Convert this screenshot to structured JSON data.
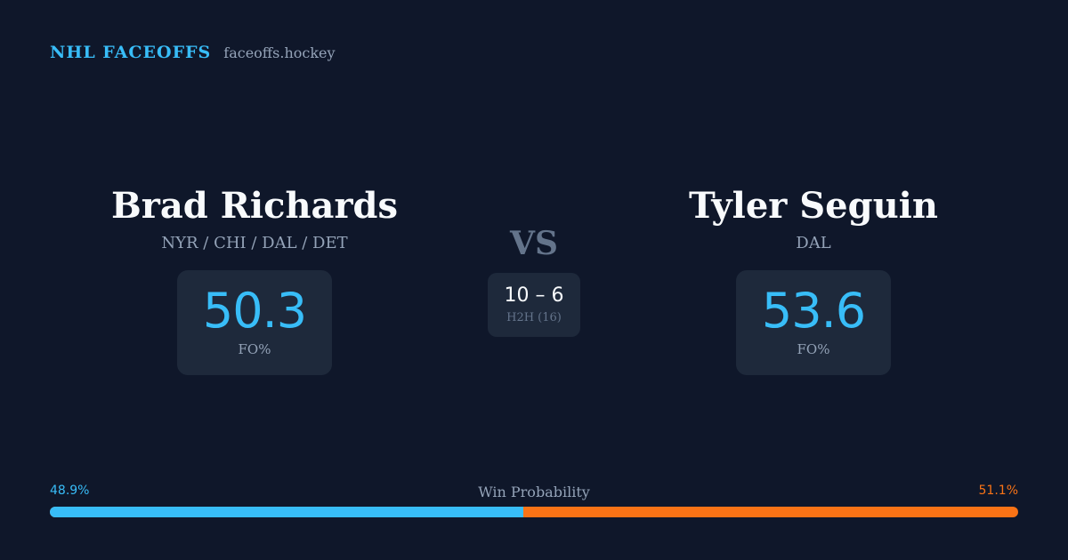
{
  "header": {
    "brand": "NHL FACEOFFS",
    "site": "faceoffs.hockey"
  },
  "player_left": {
    "name": "Brad Richards",
    "teams": "NYR / CHI / DAL / DET",
    "stat_value": "50.3",
    "stat_label": "FO%"
  },
  "player_right": {
    "name": "Tyler Seguin",
    "teams": "DAL",
    "stat_value": "53.6",
    "stat_label": "FO%"
  },
  "versus": {
    "label": "VS",
    "score": "10 – 6",
    "caption": "H2H (16)"
  },
  "win_probability": {
    "title": "Win Probability",
    "left_label": "48.9%",
    "right_label": "51.1%",
    "left_fraction": 0.489,
    "left_color": "#38bdf8",
    "right_color": "#f97316"
  }
}
